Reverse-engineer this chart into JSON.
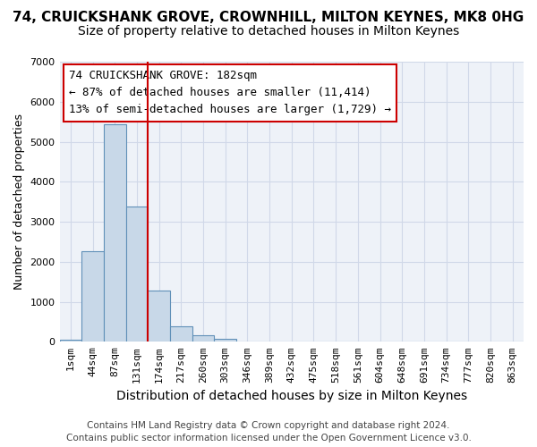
{
  "title": "74, CRUICKSHANK GROVE, CROWNHILL, MILTON KEYNES, MK8 0HG",
  "subtitle": "Size of property relative to detached houses in Milton Keynes",
  "xlabel": "Distribution of detached houses by size in Milton Keynes",
  "ylabel": "Number of detached properties",
  "footer_line1": "Contains HM Land Registry data © Crown copyright and database right 2024.",
  "footer_line2": "Contains public sector information licensed under the Open Government Licence v3.0.",
  "bin_labels": [
    "1sqm",
    "44sqm",
    "87sqm",
    "131sqm",
    "174sqm",
    "217sqm",
    "260sqm",
    "303sqm",
    "346sqm",
    "389sqm",
    "432sqm",
    "475sqm",
    "518sqm",
    "561sqm",
    "604sqm",
    "648sqm",
    "691sqm",
    "734sqm",
    "777sqm",
    "820sqm",
    "863sqm"
  ],
  "bar_values": [
    60,
    2270,
    5430,
    3380,
    1270,
    390,
    160,
    70,
    5,
    0,
    0,
    0,
    0,
    0,
    0,
    0,
    0,
    0,
    0,
    0,
    0
  ],
  "bar_color": "#c8d8e8",
  "bar_edge_color": "#6090b8",
  "grid_color": "#d0d8e8",
  "background_color": "#eef2f8",
  "vline_x": 3.5,
  "vline_color": "#cc0000",
  "annotation_text": "74 CRUICKSHANK GROVE: 182sqm\n← 87% of detached houses are smaller (11,414)\n13% of semi-detached houses are larger (1,729) →",
  "annotation_box_color": "#cc0000",
  "ylim": [
    0,
    7000
  ],
  "yticks": [
    0,
    1000,
    2000,
    3000,
    4000,
    5000,
    6000,
    7000
  ],
  "title_fontsize": 11,
  "subtitle_fontsize": 10,
  "xlabel_fontsize": 10,
  "ylabel_fontsize": 9,
  "tick_fontsize": 8,
  "annotation_fontsize": 9,
  "footer_fontsize": 7.5
}
